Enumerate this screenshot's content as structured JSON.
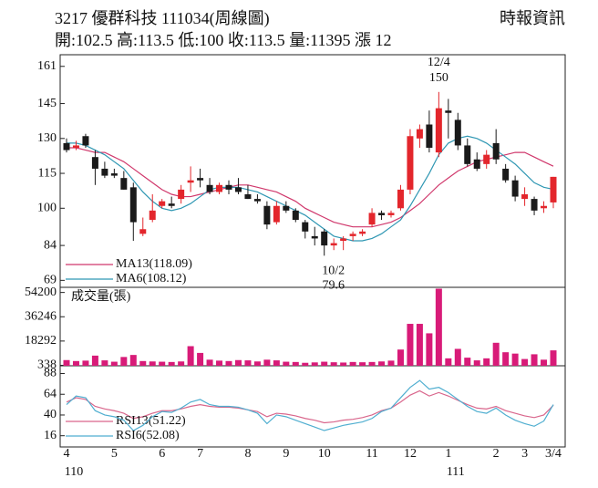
{
  "header": {
    "title": "3217  優群科技 111034(周線圖)",
    "source": "時報資訊",
    "summary": "開:102.5 高:113.5 低:100 收:113.5 量:11395 漲 12"
  },
  "chart_data": [
    {
      "type": "candlestick",
      "up_color": "#e3262c",
      "down_color": "#1a1a1a",
      "open": [
        128,
        126,
        131,
        122,
        117,
        115,
        113,
        109,
        89,
        95,
        101,
        102,
        104,
        111,
        113,
        110,
        107,
        110,
        109,
        106,
        104,
        101,
        94,
        101,
        99,
        94,
        88,
        90,
        84,
        86,
        88,
        89,
        93,
        98,
        97,
        100,
        108,
        130,
        136,
        124,
        142,
        138,
        127,
        121,
        119,
        128,
        117,
        112,
        104,
        104,
        100,
        102.5
      ],
      "high": [
        130,
        129,
        132,
        125,
        120,
        117,
        116,
        111,
        96,
        106,
        104,
        105,
        110,
        118,
        117,
        113,
        111,
        112,
        113,
        110,
        106,
        103,
        103,
        103,
        100,
        95,
        92,
        91,
        87,
        88,
        90,
        91,
        100,
        99,
        99,
        110,
        134,
        136,
        142,
        150,
        147,
        141,
        130,
        124,
        125,
        134,
        119,
        114,
        109,
        105,
        103,
        113.5
      ],
      "low": [
        124,
        125,
        126,
        110,
        113,
        113,
        108,
        86,
        88,
        94,
        100,
        100,
        102,
        107,
        109,
        106,
        106,
        106,
        106,
        104,
        102,
        91,
        93,
        98,
        94,
        87,
        84,
        79.6,
        82,
        82,
        86,
        88,
        92,
        95,
        96,
        99,
        106,
        126,
        124,
        122,
        130,
        125,
        118,
        116,
        117,
        119,
        111,
        103,
        101,
        97,
        98,
        100
      ],
      "close": [
        125,
        127,
        127,
        117,
        114,
        114,
        108,
        94,
        91,
        99,
        103,
        101,
        108,
        112,
        112,
        107,
        110,
        108,
        107,
        104,
        103,
        93,
        101,
        99,
        95,
        90,
        87,
        84,
        85,
        87,
        89,
        90,
        98,
        97,
        98,
        108,
        131,
        134,
        126,
        143,
        141,
        127,
        119,
        117,
        123,
        121,
        112,
        105,
        106,
        99,
        101,
        113.5
      ],
      "lines": [
        {
          "name": "MA13(118.09)",
          "color": "#d0386c",
          "values": [
            126,
            126,
            125,
            124,
            124,
            122,
            120,
            117,
            114,
            111,
            108,
            106,
            105,
            105,
            106,
            107,
            108,
            109,
            110,
            110,
            109,
            108,
            107,
            105,
            103,
            100,
            98,
            96,
            94,
            93,
            92,
            92,
            92,
            93,
            94,
            96,
            99,
            102,
            106,
            110,
            113,
            116,
            118,
            120,
            121,
            122,
            123,
            124,
            124,
            122,
            120,
            118.09
          ]
        },
        {
          "name": "MA6(108.12)",
          "color": "#2f97b3",
          "values": [
            128,
            128,
            127,
            125,
            123,
            120,
            117,
            112,
            107,
            103,
            100,
            99,
            100,
            102,
            105,
            108,
            109,
            109,
            109,
            108,
            107,
            105,
            103,
            101,
            99,
            97,
            94,
            91,
            88,
            87,
            86,
            86,
            87,
            89,
            92,
            95,
            101,
            108,
            115,
            123,
            128,
            130,
            131,
            130,
            128,
            125,
            122,
            119,
            115,
            111,
            109,
            108.12
          ]
        }
      ],
      "annotations": [
        {
          "date": "12/4",
          "value": 150
        },
        {
          "date": "10/2",
          "value": 79.6
        }
      ],
      "ylim": [
        66,
        166
      ],
      "yticks": [
        69,
        84,
        100,
        115,
        130,
        145,
        161
      ]
    },
    {
      "type": "bar",
      "title": "成交量(張)",
      "color": "#d81b78",
      "values": [
        4200,
        3500,
        3800,
        7500,
        4000,
        3000,
        6500,
        8000,
        3500,
        3200,
        3000,
        2800,
        3200,
        14500,
        9500,
        4500,
        3800,
        3500,
        4200,
        4000,
        3200,
        4500,
        4000,
        3000,
        2800,
        2200,
        2500,
        3000,
        2600,
        2400,
        2800,
        2600,
        2800,
        3200,
        3800,
        12000,
        31000,
        31000,
        24000,
        57000,
        5500,
        12500,
        6000,
        4000,
        5500,
        17000,
        10000,
        9000,
        5000,
        8500,
        4500,
        11395
      ],
      "ylim": [
        0,
        58000
      ],
      "yticks": [
        338,
        18292,
        36246,
        54200
      ]
    },
    {
      "type": "line",
      "categories": [
        "4",
        null,
        null,
        null,
        null,
        "5",
        null,
        null,
        null,
        null,
        "6",
        null,
        null,
        null,
        "7",
        null,
        null,
        null,
        null,
        "8",
        null,
        null,
        null,
        "9",
        null,
        null,
        null,
        "10",
        null,
        null,
        null,
        null,
        "11",
        null,
        null,
        null,
        "12",
        null,
        null,
        null,
        "1",
        null,
        null,
        null,
        null,
        "2",
        null,
        null,
        "3",
        null,
        null,
        "3/4"
      ],
      "years": [
        "110",
        null,
        null,
        null,
        null,
        null,
        null,
        null,
        null,
        null,
        null,
        null,
        null,
        null,
        null,
        null,
        null,
        null,
        null,
        null,
        null,
        null,
        null,
        null,
        null,
        null,
        null,
        null,
        null,
        null,
        null,
        null,
        null,
        null,
        null,
        null,
        null,
        null,
        null,
        null,
        "111",
        null,
        null,
        null,
        null,
        null,
        null,
        null,
        null,
        null,
        null,
        null
      ],
      "series": [
        {
          "name": "RSI13(51.22)",
          "color": "#d9668c",
          "values": [
            55,
            60,
            58,
            50,
            47,
            45,
            42,
            36,
            38,
            42,
            45,
            45,
            47,
            50,
            52,
            50,
            49,
            49,
            48,
            46,
            44,
            38,
            42,
            41,
            39,
            36,
            34,
            31,
            32,
            34,
            35,
            37,
            40,
            45,
            48,
            55,
            63,
            68,
            62,
            66,
            62,
            57,
            52,
            48,
            47,
            50,
            45,
            42,
            39,
            37,
            40,
            51.22
          ]
        },
        {
          "name": "RSI6(52.08)",
          "color": "#4faed0",
          "values": [
            52,
            62,
            60,
            45,
            40,
            38,
            34,
            22,
            28,
            38,
            44,
            43,
            48,
            55,
            58,
            52,
            50,
            50,
            49,
            46,
            42,
            30,
            40,
            38,
            34,
            30,
            26,
            22,
            25,
            28,
            30,
            32,
            36,
            44,
            48,
            60,
            72,
            80,
            70,
            72,
            66,
            58,
            50,
            44,
            42,
            48,
            40,
            34,
            30,
            27,
            33,
            52.08
          ]
        }
      ],
      "ylim": [
        3,
        97
      ],
      "yticks": [
        16,
        40,
        64,
        88
      ]
    }
  ]
}
